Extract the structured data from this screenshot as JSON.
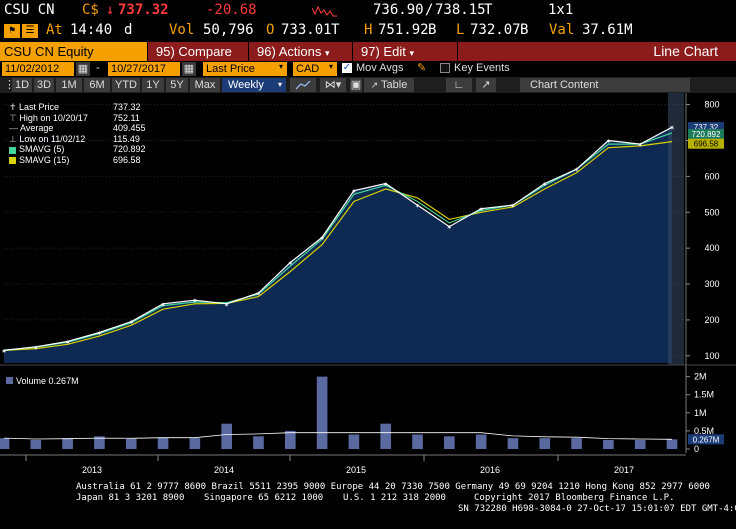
{
  "header": {
    "ticker": "CSU CN",
    "currency": "C$",
    "last_price": "737.32",
    "change": "-20.68",
    "bid": "736.90",
    "ask": "738.15",
    "ask_suffix": "T",
    "size": "1x1",
    "at_label": "At",
    "at_time": "14:40",
    "at_suffix": "d",
    "vol_label": "Vol",
    "vol_value": "50,796",
    "open_label": "O",
    "open_value": "733.01",
    "open_suffix": "T",
    "high_label": "H",
    "high_value": "751.92",
    "high_suffix": "B",
    "low_label": "L",
    "low_value": "732.07",
    "low_suffix": "B",
    "val_label": "Val",
    "val_value": "37.61M"
  },
  "menu": {
    "equity": "CSU CN Equity",
    "compare_num": "95)",
    "compare": "Compare",
    "actions_num": "96)",
    "actions": "Actions",
    "edit_num": "97)",
    "edit": "Edit",
    "title": "Line Chart"
  },
  "controls": {
    "start_date": "11/02/2012",
    "end_date": "10/27/2017",
    "field": "Last Price",
    "currency": "CAD",
    "mov_avgs": "Mov Avgs",
    "key_events": "Key Events"
  },
  "toolbar": {
    "periods": [
      "1D",
      "3D",
      "1M",
      "6M",
      "YTD",
      "1Y",
      "5Y",
      "Max"
    ],
    "frequency": "Weekly",
    "table": "Table",
    "chart_content": "Chart Content"
  },
  "legend": {
    "rows": [
      {
        "label": "Last Price",
        "value": "737.32"
      },
      {
        "label": "High on 10/20/17",
        "value": "752.11"
      },
      {
        "label": "Average",
        "value": "409.455"
      },
      {
        "label": "Low on 11/02/12",
        "value": "115.49"
      },
      {
        "label": "SMAVG (5)",
        "value": "720.892"
      },
      {
        "label": "SMAVG (15)",
        "value": "696.58"
      }
    ],
    "volume_label": "Volume",
    "volume_value": "0.267M"
  },
  "colors": {
    "amber": "#f4a000",
    "menu_red": "#8c1c1c",
    "area_fill": "#0f2a52",
    "price_line": "#ffffff",
    "smavg5": "#44d49a",
    "smavg15": "#d8d200",
    "volume_bar": "#5a6aa0"
  },
  "chart_data": {
    "type": "area",
    "x": [
      "2012-11",
      "2013-02",
      "2013-05",
      "2013-08",
      "2013-11",
      "2014-02",
      "2014-05",
      "2014-08",
      "2014-11",
      "2015-02",
      "2015-05",
      "2015-08",
      "2015-11",
      "2015-12",
      "2016-02",
      "2016-05",
      "2016-08",
      "2016-11",
      "2017-02",
      "2017-05",
      "2017-08",
      "2017-10"
    ],
    "series": [
      {
        "name": "Last Price",
        "values": [
          115,
          125,
          140,
          165,
          195,
          245,
          255,
          245,
          275,
          360,
          430,
          560,
          580,
          520,
          460,
          510,
          520,
          580,
          620,
          700,
          690,
          737
        ]
      },
      {
        "name": "SMAVG (5)",
        "values": [
          116,
          124,
          138,
          162,
          192,
          240,
          250,
          248,
          272,
          350,
          425,
          550,
          575,
          530,
          470,
          505,
          520,
          575,
          620,
          690,
          690,
          721
        ]
      },
      {
        "name": "SMAVG (15)",
        "values": [
          115,
          120,
          132,
          155,
          185,
          230,
          245,
          246,
          265,
          335,
          410,
          530,
          565,
          540,
          480,
          500,
          515,
          565,
          610,
          680,
          685,
          697
        ]
      }
    ],
    "volume_ticks": [
      "2M",
      "1.5M",
      "1M",
      "0.5M",
      "0"
    ],
    "volume_values": [
      0.3,
      0.25,
      0.3,
      0.35,
      0.28,
      0.32,
      0.3,
      0.7,
      0.35,
      0.5,
      2.0,
      0.4,
      0.7,
      0.4,
      0.35,
      0.4,
      0.3,
      0.3,
      0.3,
      0.25,
      0.25,
      0.267
    ],
    "x_tick_labels": [
      "2013",
      "2014",
      "2015",
      "2016",
      "2017"
    ],
    "y_ticks": [
      "800",
      "700",
      "600",
      "500",
      "400",
      "300",
      "200",
      "100"
    ],
    "ylim": [
      80,
      810
    ],
    "volume_ylim": [
      0,
      2.1
    ],
    "price_tags": [
      "737.32",
      "720.892",
      "696.58"
    ],
    "volume_tag": "0.267M"
  },
  "footer": {
    "line1": "Australia 61 2 9777 8600 Brazil 5511 2395 9000 Europe 44 20 7330 7500 Germany 49 69 9204 1210 Hong Kong 852 2977 6000",
    "line2a": "Japan 81 3 3201 8900",
    "line2b": "Singapore 65 6212 1000",
    "line2c": "U.S. 1 212 318 2000",
    "line2d": "Copyright 2017 Bloomberg Finance L.P.",
    "line3": "SN 732280 H698-3084-0 27-Oct-17 15:01:07 EDT  GMT-4:00"
  }
}
